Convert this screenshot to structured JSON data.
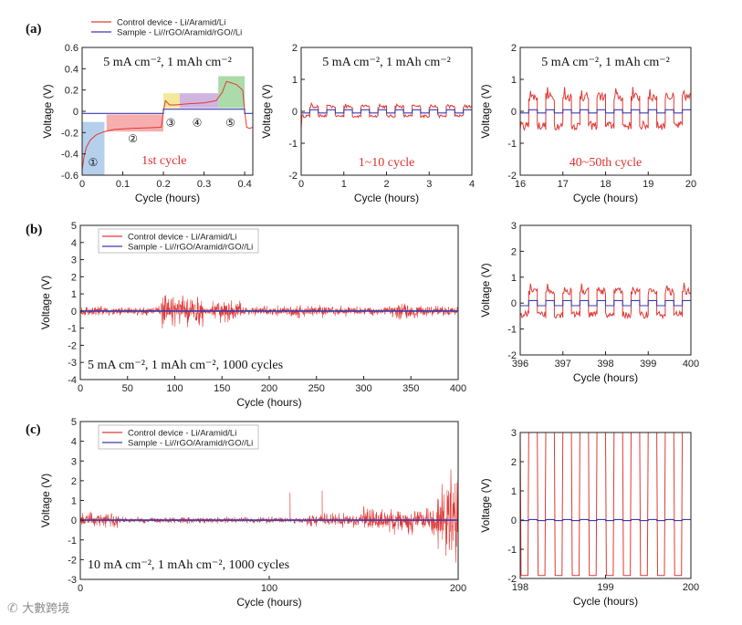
{
  "colors": {
    "control": "#e03a36",
    "sample": "#3b3bb0",
    "axis": "#222222"
  },
  "watermark": "大數跨境",
  "chart_data": [
    {
      "id": "a1",
      "panel_label": "(a)",
      "type": "line",
      "xlabel": "Cycle (hours)",
      "ylabel": "Voltage (V)",
      "xlim": [
        0,
        0.42
      ],
      "ylim": [
        -0.6,
        0.6
      ],
      "xticks": [
        0,
        0.1,
        0.2,
        0.3,
        0.4
      ],
      "yticks": [
        -0.6,
        -0.4,
        -0.2,
        0,
        0.2,
        0.4,
        0.6
      ],
      "condition": "5 mA cm⁻², 1 mAh cm⁻²",
      "note": "1st cycle",
      "legend": [
        "Control device - Li/Aramid/Li",
        "Sample - Li//rGO/Aramid/rGO//Li"
      ],
      "stage_labels": [
        "①",
        "②",
        "③",
        "④",
        "⑤"
      ],
      "regions": [
        {
          "x0": 0.0,
          "x1": 0.055,
          "y0": -0.6,
          "y1": -0.1,
          "color": "#a8c8e8"
        },
        {
          "x0": 0.06,
          "x1": 0.2,
          "y0": -0.19,
          "y1": -0.03,
          "color": "#f4a0a0"
        },
        {
          "x0": 0.2,
          "x1": 0.24,
          "y0": 0.03,
          "y1": 0.17,
          "color": "#f5e48a"
        },
        {
          "x0": 0.24,
          "x1": 0.335,
          "y0": 0.03,
          "y1": 0.17,
          "color": "#c8a8dc"
        },
        {
          "x0": 0.335,
          "x1": 0.4,
          "y0": 0.03,
          "y1": 0.33,
          "color": "#9cd49c"
        }
      ],
      "control_curve": [
        [
          0.0,
          -0.55
        ],
        [
          0.005,
          -0.42
        ],
        [
          0.01,
          -0.34
        ],
        [
          0.02,
          -0.27
        ],
        [
          0.035,
          -0.22
        ],
        [
          0.055,
          -0.19
        ],
        [
          0.08,
          -0.17
        ],
        [
          0.12,
          -0.16
        ],
        [
          0.16,
          -0.155
        ],
        [
          0.195,
          -0.15
        ],
        [
          0.2,
          0.0
        ],
        [
          0.205,
          0.1
        ],
        [
          0.215,
          0.06
        ],
        [
          0.23,
          0.06
        ],
        [
          0.26,
          0.07
        ],
        [
          0.3,
          0.08
        ],
        [
          0.33,
          0.1
        ],
        [
          0.345,
          0.18
        ],
        [
          0.355,
          0.28
        ],
        [
          0.365,
          0.27
        ],
        [
          0.38,
          0.25
        ],
        [
          0.395,
          0.2
        ],
        [
          0.4,
          0.0
        ],
        [
          0.405,
          -0.15
        ],
        [
          0.412,
          -0.16
        ],
        [
          0.42,
          -0.15
        ]
      ],
      "sample_curve": [
        [
          0.0,
          -0.02
        ],
        [
          0.2,
          -0.02
        ],
        [
          0.2,
          0.02
        ],
        [
          0.4,
          0.02
        ],
        [
          0.4,
          -0.02
        ],
        [
          0.42,
          -0.02
        ]
      ]
    },
    {
      "id": "a2",
      "type": "line",
      "xlabel": "Cycle (hours)",
      "ylabel": "Voltage (V)",
      "xlim": [
        0,
        4
      ],
      "ylim": [
        -2,
        2
      ],
      "xticks": [
        0,
        1,
        2,
        3,
        4
      ],
      "yticks": [
        -2,
        -1,
        0,
        1,
        2
      ],
      "condition": "5 mA cm⁻², 1 mAh cm⁻²",
      "note": "1~10 cycle",
      "square": {
        "x_start": 0.0,
        "x_end": 4.0,
        "period": 0.4,
        "control_amp": 0.15,
        "sample_amp": 0.05,
        "first_spike": -0.55
      }
    },
    {
      "id": "a3",
      "type": "line",
      "xlabel": "Cycle (hours)",
      "ylabel": "Voltage (V)",
      "xlim": [
        16,
        20
      ],
      "ylim": [
        -2,
        2
      ],
      "xticks": [
        16,
        17,
        18,
        19,
        20
      ],
      "yticks": [
        -2,
        -1,
        0,
        1,
        2
      ],
      "condition": "5 mA cm⁻², 1 mAh cm⁻²",
      "note": "40~50th cycle",
      "square": {
        "x_start": 16.0,
        "x_end": 20.0,
        "period": 0.4,
        "control_amp": 0.45,
        "sample_amp": 0.05
      }
    },
    {
      "id": "b1",
      "panel_label": "(b)",
      "type": "line",
      "xlabel": "Cycle (hours)",
      "ylabel": "Voltage (V)",
      "xlim": [
        0,
        400
      ],
      "ylim": [
        -4,
        5
      ],
      "xticks": [
        0,
        50,
        100,
        150,
        200,
        250,
        300,
        350,
        400
      ],
      "yticks": [
        -4,
        -3,
        -2,
        -1,
        0,
        1,
        2,
        3,
        4,
        5
      ],
      "condition": "5 mA cm⁻², 1 mAh cm⁻², 1000 cycles",
      "legend": [
        "Control device - Li/Aramid/Li",
        "Sample - Li//rGO/Aramid/rGO//Li"
      ],
      "noise": {
        "x_start": 0,
        "x_end": 400,
        "base_amp": 0.35,
        "bursts": [
          [
            85,
            130,
            1.1
          ],
          [
            140,
            170,
            0.8
          ],
          [
            220,
            260,
            0.5
          ],
          [
            330,
            360,
            0.6
          ]
        ],
        "sample_amp": 0.05
      }
    },
    {
      "id": "b2",
      "type": "line",
      "xlabel": "Cycle (hours)",
      "ylabel": "Voltage (V)",
      "xlim": [
        396,
        400
      ],
      "ylim": [
        -2,
        3
      ],
      "xticks": [
        396,
        397,
        398,
        399,
        400
      ],
      "yticks": [
        -2,
        -1,
        0,
        1,
        2,
        3
      ],
      "square": {
        "x_start": 396.0,
        "x_end": 400.0,
        "period": 0.4,
        "control_amp": 0.45,
        "sample_amp": 0.1
      }
    },
    {
      "id": "c1",
      "panel_label": "(c)",
      "type": "line",
      "xlabel": "Cycle (hours)",
      "ylabel": "Voltage (V)",
      "xlim": [
        0,
        200
      ],
      "ylim": [
        -3,
        5
      ],
      "xticks": [
        0,
        100,
        200
      ],
      "yticks": [
        -3,
        -2,
        -1,
        0,
        1,
        2,
        3,
        4,
        5
      ],
      "condition": "10 mA cm⁻², 1 mAh cm⁻², 1000 cycles",
      "legend": [
        "Control device - Li/Aramid/Li",
        "Sample - Li//rGO/Aramid/rGO//Li"
      ],
      "noise": {
        "x_start": 0,
        "x_end": 200,
        "base_amp": 0.2,
        "bursts": [
          [
            0,
            20,
            0.5
          ],
          [
            120,
            150,
            0.4
          ],
          [
            150,
            185,
            0.8
          ],
          [
            185,
            200,
            3.5
          ]
        ],
        "sample_amp": 0.02,
        "spikes": [
          [
            111,
            1.4
          ],
          [
            128,
            1.5
          ]
        ]
      }
    },
    {
      "id": "c2",
      "type": "line",
      "xlabel": "Cycle (hours)",
      "ylabel": "Voltage (V)",
      "xlim": [
        198,
        200
      ],
      "ylim": [
        -2,
        3
      ],
      "xticks": [
        198,
        199,
        200
      ],
      "yticks": [
        -2,
        -1,
        0,
        1,
        2,
        3
      ],
      "square": {
        "x_start": 198.0,
        "x_end": 200.0,
        "period": 0.2,
        "control_high": 3.0,
        "control_low": -1.9,
        "sample_amp": 0.02
      }
    }
  ]
}
